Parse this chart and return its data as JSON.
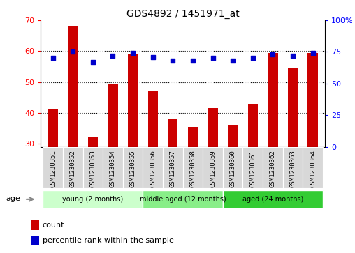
{
  "title": "GDS4892 / 1451971_at",
  "samples": [
    "GSM1230351",
    "GSM1230352",
    "GSM1230353",
    "GSM1230354",
    "GSM1230355",
    "GSM1230356",
    "GSM1230357",
    "GSM1230358",
    "GSM1230359",
    "GSM1230360",
    "GSM1230361",
    "GSM1230362",
    "GSM1230363",
    "GSM1230364"
  ],
  "counts": [
    41,
    68,
    32,
    49.5,
    59,
    47,
    38,
    35.5,
    41.5,
    36,
    43,
    59.5,
    54.5,
    59.5
  ],
  "percentiles": [
    70,
    75,
    67,
    72,
    74,
    71,
    68,
    68,
    70,
    68,
    70,
    73,
    72,
    74
  ],
  "bar_color": "#cc0000",
  "dot_color": "#0000cc",
  "ylim_left": [
    29,
    70
  ],
  "ylim_right": [
    0,
    100
  ],
  "yticks_left": [
    30,
    40,
    50,
    60,
    70
  ],
  "yticks_right": [
    0,
    25,
    50,
    75,
    100
  ],
  "grid_lines": [
    40,
    50,
    60
  ],
  "groups": [
    {
      "label": "young (2 months)",
      "start": 0,
      "end": 5,
      "color": "#ccffcc"
    },
    {
      "label": "middle aged (12 months)",
      "start": 5,
      "end": 9,
      "color": "#88ee88"
    },
    {
      "label": "aged (24 months)",
      "start": 9,
      "end": 14,
      "color": "#33cc33"
    }
  ],
  "age_label": "age",
  "legend_count_label": "count",
  "legend_percentile_label": "percentile rank within the sample",
  "bar_width": 0.5,
  "xlabel_bg": "#d8d8d8",
  "right_axis_label_100": "100%"
}
